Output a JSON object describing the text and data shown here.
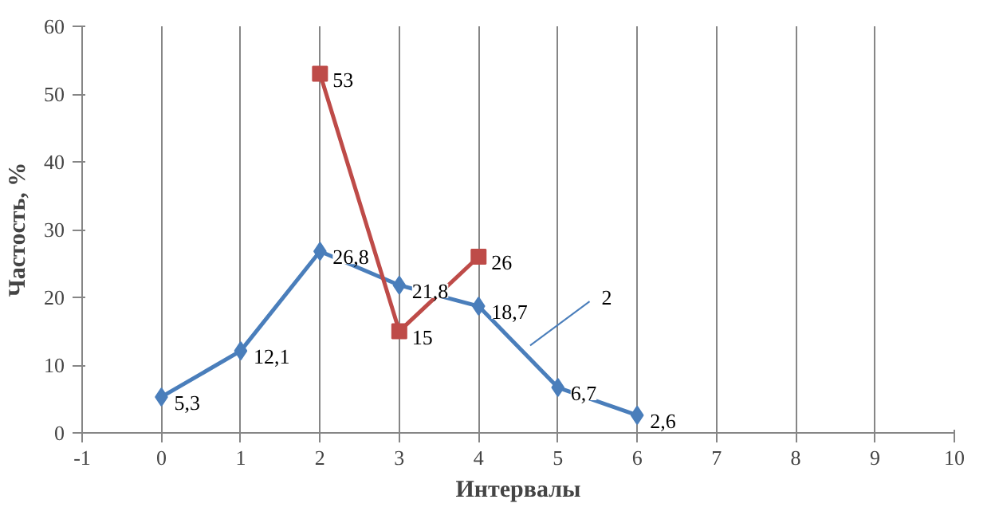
{
  "chart_data": {
    "type": "line",
    "xlabel": "Интервалы",
    "ylabel": "Частость, %",
    "x": [
      0,
      1,
      2,
      3,
      4,
      5,
      6
    ],
    "series": [
      {
        "name": "2",
        "color": "#4a7ebb",
        "marker": "diamond",
        "values": [
          5.3,
          12.1,
          26.8,
          21.8,
          18.7,
          6.7,
          2.6
        ],
        "value_labels": [
          "5,3",
          "12,1",
          "26,8",
          "21,8",
          "18,7",
          "6,7",
          "2,6"
        ]
      },
      {
        "color": "#be4b48",
        "marker": "square",
        "x": [
          2,
          3,
          4
        ],
        "values": [
          53,
          15,
          26
        ],
        "value_labels": [
          "53",
          "15",
          "26"
        ]
      }
    ],
    "xlim": [
      -1,
      10
    ],
    "xticks": [
      -1,
      0,
      1,
      2,
      3,
      4,
      5,
      6,
      7,
      8,
      9,
      10
    ],
    "ylim": [
      0,
      60
    ],
    "yticks": [
      0,
      10,
      20,
      30,
      40,
      50,
      60
    ],
    "grid": "x",
    "line_style": "solid"
  }
}
